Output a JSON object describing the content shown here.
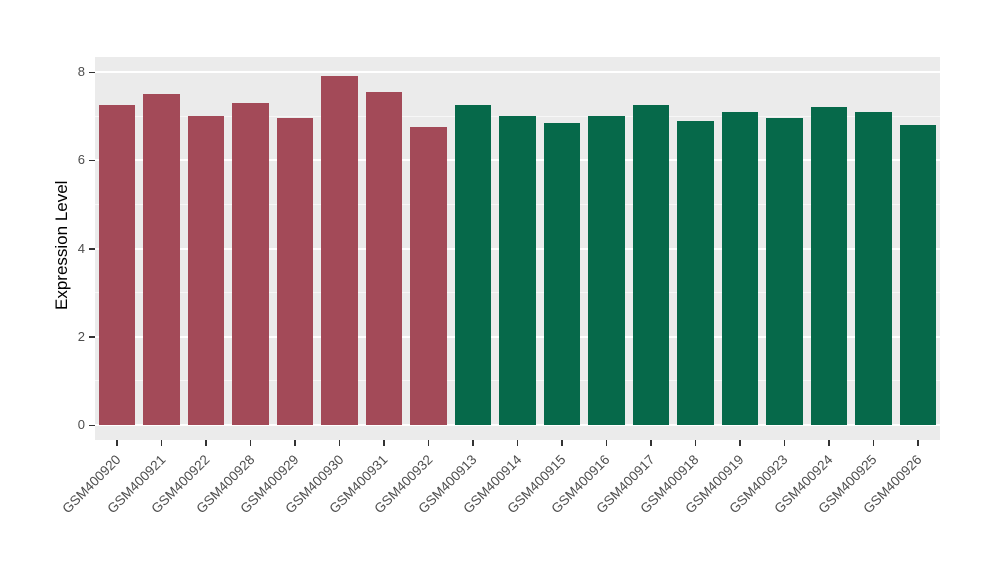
{
  "chart_data": {
    "type": "bar",
    "title": "",
    "xlabel": "",
    "ylabel": "Expression Level",
    "ylim": [
      0,
      8.35
    ],
    "y_ticks": [
      0,
      2,
      4,
      6,
      8
    ],
    "y_minor_ticks": [
      1,
      3,
      5,
      7
    ],
    "legend": null,
    "grid": "on",
    "panel_background": "#EBEBEB",
    "grid_color": "#FFFFFF",
    "group_colors": {
      "group1": "#A34A58",
      "group2": "#06694A"
    },
    "categories": [
      "GSM400920",
      "GSM400921",
      "GSM400922",
      "GSM400928",
      "GSM400929",
      "GSM400930",
      "GSM400931",
      "GSM400932",
      "GSM400913",
      "GSM400914",
      "GSM400915",
      "GSM400916",
      "GSM400917",
      "GSM400918",
      "GSM400919",
      "GSM400923",
      "GSM400924",
      "GSM400925",
      "GSM400926"
    ],
    "values": [
      7.25,
      7.5,
      7.0,
      7.3,
      6.95,
      7.9,
      7.55,
      6.75,
      7.25,
      7.0,
      6.85,
      7.0,
      7.25,
      6.9,
      7.1,
      6.95,
      7.2,
      7.1,
      6.8
    ],
    "bar_groups": [
      "group1",
      "group1",
      "group1",
      "group1",
      "group1",
      "group1",
      "group1",
      "group1",
      "group2",
      "group2",
      "group2",
      "group2",
      "group2",
      "group2",
      "group2",
      "group2",
      "group2",
      "group2",
      "group2"
    ]
  },
  "layout_text": {
    "y_axis_title": "Expression Level"
  }
}
